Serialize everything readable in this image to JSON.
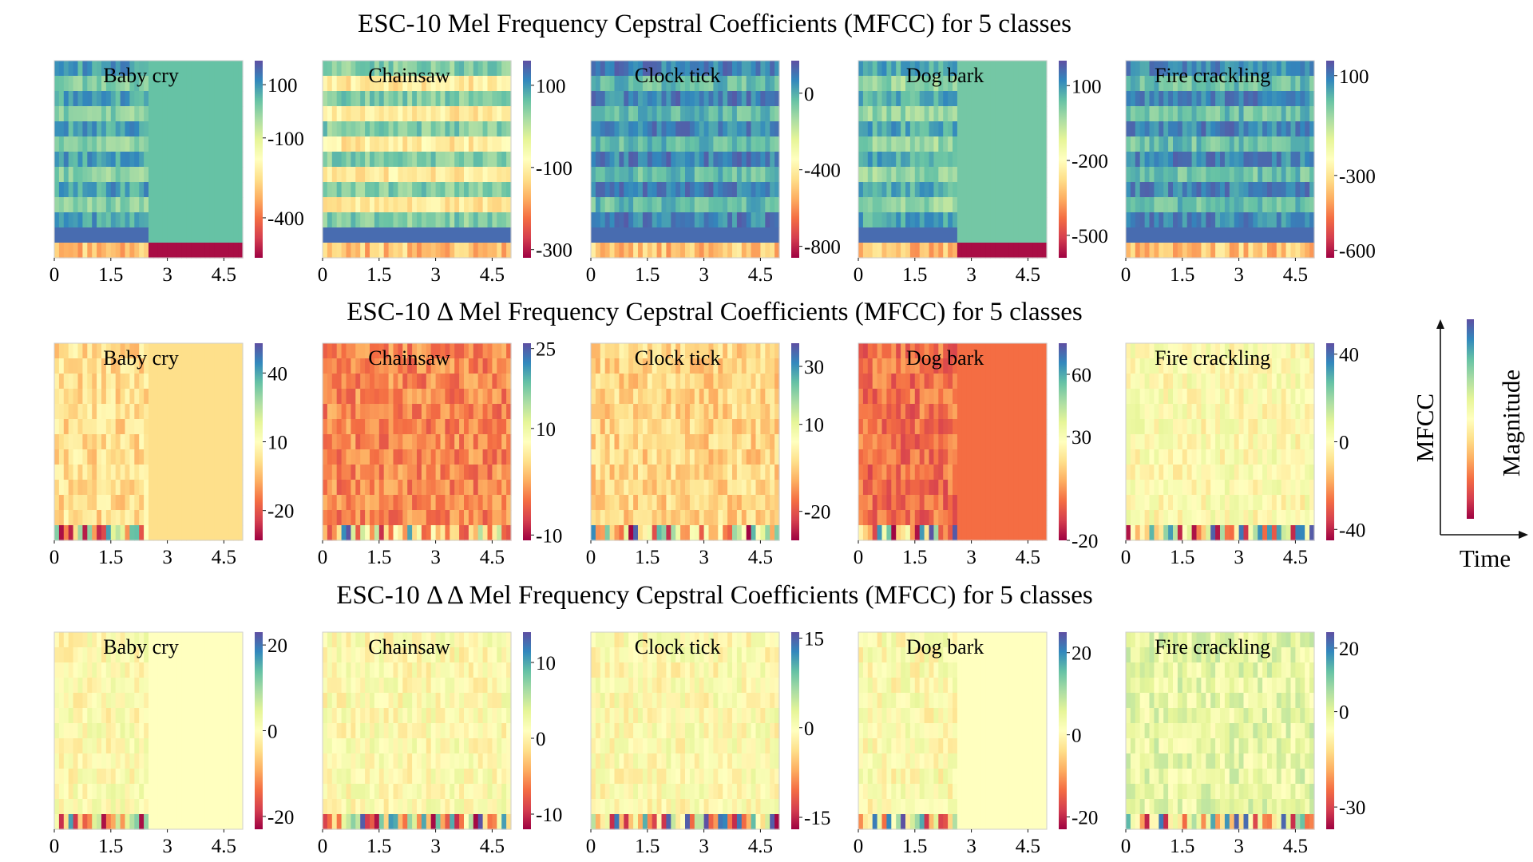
{
  "chart_data": {
    "type": "heatmap",
    "colormap": "Spectral",
    "x_ticks": [
      "0",
      "1.5",
      "3",
      "4.5"
    ],
    "x_range": [
      0,
      5
    ],
    "rows": [
      {
        "title": "ESC-10 Mel Frequency Cepstral Coefficients (MFCC) for 5 classes",
        "panels": [
          {
            "name": "Baby cry",
            "colorbar_ticks": [
              "100",
              "-100",
              "-400"
            ],
            "colorbar_values": [
              100,
              -100,
              -400
            ],
            "vrange": [
              -550,
              190
            ]
          },
          {
            "name": "Chainsaw",
            "colorbar_ticks": [
              "100",
              "-100",
              "-300"
            ],
            "colorbar_values": [
              100,
              -100,
              -300
            ],
            "vrange": [
              -320,
              160
            ]
          },
          {
            "name": "Clock tick",
            "colorbar_ticks": [
              "0",
              "-400",
              "-800"
            ],
            "colorbar_values": [
              0,
              -400,
              -800
            ],
            "vrange": [
              -860,
              170
            ]
          },
          {
            "name": "Dog bark",
            "colorbar_ticks": [
              "100",
              "-200",
              "-500"
            ],
            "colorbar_values": [
              100,
              -200,
              -500
            ],
            "vrange": [
              -590,
              200
            ]
          },
          {
            "name": "Fire crackling",
            "colorbar_ticks": [
              "100",
              "-300",
              "-600"
            ],
            "colorbar_values": [
              100,
              -300,
              -600
            ],
            "vrange": [
              -630,
              160
            ]
          }
        ]
      },
      {
        "title": "ESC-10 Δ Mel Frequency Cepstral Coefficients (MFCC) for 5 classes",
        "panels": [
          {
            "name": "Baby cry",
            "colorbar_ticks": [
              "40",
              "10",
              "-20"
            ],
            "colorbar_values": [
              40,
              10,
              -20
            ],
            "vrange": [
              -33,
              53
            ]
          },
          {
            "name": "Chainsaw",
            "colorbar_ticks": [
              "25",
              "10",
              "-10"
            ],
            "colorbar_values": [
              25,
              10,
              -10
            ],
            "vrange": [
              -11,
              26
            ]
          },
          {
            "name": "Clock tick",
            "colorbar_ticks": [
              "30",
              "10",
              "-20"
            ],
            "colorbar_values": [
              30,
              10,
              -20
            ],
            "vrange": [
              -30,
              38
            ]
          },
          {
            "name": "Dog bark",
            "colorbar_ticks": [
              "60",
              "30",
              "-20"
            ],
            "colorbar_values": [
              60,
              30,
              -20
            ],
            "vrange": [
              -20,
              75
            ]
          },
          {
            "name": "Fire crackling",
            "colorbar_ticks": [
              "40",
              "0",
              "-40"
            ],
            "colorbar_values": [
              40,
              0,
              -40
            ],
            "vrange": [
              -45,
              45
            ]
          }
        ]
      },
      {
        "title": "ESC-10 Δ Δ Mel Frequency Cepstral Coefficients (MFCC) for 5 classes",
        "panels": [
          {
            "name": "Baby cry",
            "colorbar_ticks": [
              "20",
              "0",
              "-20"
            ],
            "colorbar_values": [
              20,
              0,
              -20
            ],
            "vrange": [
              -23,
              23
            ]
          },
          {
            "name": "Chainsaw",
            "colorbar_ticks": [
              "10",
              "0",
              "-10"
            ],
            "colorbar_values": [
              10,
              0,
              -10
            ],
            "vrange": [
              -12,
              14
            ]
          },
          {
            "name": "Clock tick",
            "colorbar_ticks": [
              "15",
              "0",
              "-15"
            ],
            "colorbar_values": [
              15,
              0,
              -15
            ],
            "vrange": [
              -17,
              16
            ]
          },
          {
            "name": "Dog bark",
            "colorbar_ticks": [
              "20",
              "0",
              "-20"
            ],
            "colorbar_values": [
              20,
              0,
              -20
            ],
            "vrange": [
              -23,
              25
            ]
          },
          {
            "name": "Fire crackling",
            "colorbar_ticks": [
              "20",
              "0",
              "-30"
            ],
            "colorbar_values": [
              20,
              0,
              -30
            ],
            "vrange": [
              -37,
              25
            ]
          }
        ]
      }
    ]
  },
  "legend": {
    "y_label": "MFCC",
    "x_label": "Time",
    "colorbar_label": "Magnitude"
  }
}
